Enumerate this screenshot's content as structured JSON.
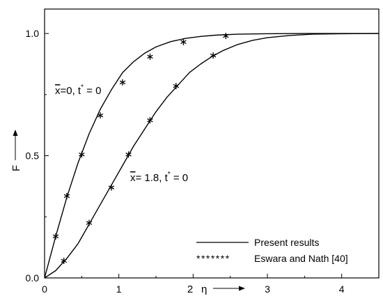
{
  "chart_data": {
    "type": "line",
    "title": "",
    "xlabel": "η",
    "xlabel_prefix_tick": "2",
    "ylabel": "F",
    "xlim": [
      0,
      4.5
    ],
    "ylim": [
      0,
      1.1
    ],
    "x_ticks": [
      0,
      1,
      2,
      3,
      4
    ],
    "y_ticks": [
      0.0,
      0.5,
      1.0
    ],
    "x_tick_labels": [
      "0",
      "1",
      "",
      "3",
      "4"
    ],
    "y_tick_labels": [
      "0.0",
      "0.5",
      "1.0"
    ],
    "grid": false,
    "legend_position": "bottom-right",
    "legend": [
      {
        "label": "Present results",
        "style": "line"
      },
      {
        "label": "Eswara and Nath [40]",
        "style": "stars"
      }
    ],
    "annotations": [
      {
        "text": "x=0, t* = 0",
        "main": "x",
        "rest": "=0, t",
        "sup": "*",
        "tail": " = 0"
      },
      {
        "text": "x= 1.8, t* = 0",
        "main": "x",
        "rest": "= 1.8, t",
        "sup": "*",
        "tail": " = 0"
      }
    ],
    "series": [
      {
        "curve": [
          [
            0,
            0
          ],
          [
            0.15,
            0.17
          ],
          [
            0.3,
            0.33
          ],
          [
            0.45,
            0.47
          ],
          [
            0.6,
            0.59
          ],
          [
            0.75,
            0.69
          ],
          [
            0.9,
            0.77
          ],
          [
            1.05,
            0.84
          ],
          [
            1.2,
            0.885
          ],
          [
            1.35,
            0.92
          ],
          [
            1.5,
            0.945
          ],
          [
            1.7,
            0.967
          ],
          [
            1.9,
            0.98
          ],
          [
            2.1,
            0.988
          ],
          [
            2.3,
            0.993
          ],
          [
            2.6,
            0.997
          ],
          [
            3.0,
            0.999
          ],
          [
            3.5,
            1.0
          ],
          [
            4.5,
            1.0
          ]
        ],
        "points": [
          [
            0.15,
            0.17
          ],
          [
            0.3,
            0.335
          ],
          [
            0.5,
            0.505
          ],
          [
            0.75,
            0.665
          ],
          [
            1.05,
            0.8
          ],
          [
            1.42,
            0.905
          ],
          [
            1.87,
            0.965
          ],
          [
            2.44,
            0.99
          ]
        ]
      },
      {
        "curve": [
          [
            0,
            0
          ],
          [
            0.15,
            0.03
          ],
          [
            0.3,
            0.08
          ],
          [
            0.45,
            0.14
          ],
          [
            0.6,
            0.22
          ],
          [
            0.75,
            0.3
          ],
          [
            0.9,
            0.38
          ],
          [
            1.05,
            0.46
          ],
          [
            1.2,
            0.54
          ],
          [
            1.35,
            0.61
          ],
          [
            1.5,
            0.68
          ],
          [
            1.65,
            0.74
          ],
          [
            1.8,
            0.79
          ],
          [
            1.95,
            0.84
          ],
          [
            2.1,
            0.875
          ],
          [
            2.25,
            0.905
          ],
          [
            2.4,
            0.93
          ],
          [
            2.6,
            0.955
          ],
          [
            2.8,
            0.972
          ],
          [
            3.0,
            0.983
          ],
          [
            3.3,
            0.992
          ],
          [
            3.6,
            0.997
          ],
          [
            4.0,
            0.999
          ],
          [
            4.5,
            1.0
          ]
        ],
        "points": [
          [
            0.26,
            0.07
          ],
          [
            0.6,
            0.225
          ],
          [
            0.9,
            0.37
          ],
          [
            1.13,
            0.505
          ],
          [
            1.42,
            0.645
          ],
          [
            1.77,
            0.785
          ],
          [
            2.27,
            0.91
          ]
        ]
      }
    ]
  }
}
